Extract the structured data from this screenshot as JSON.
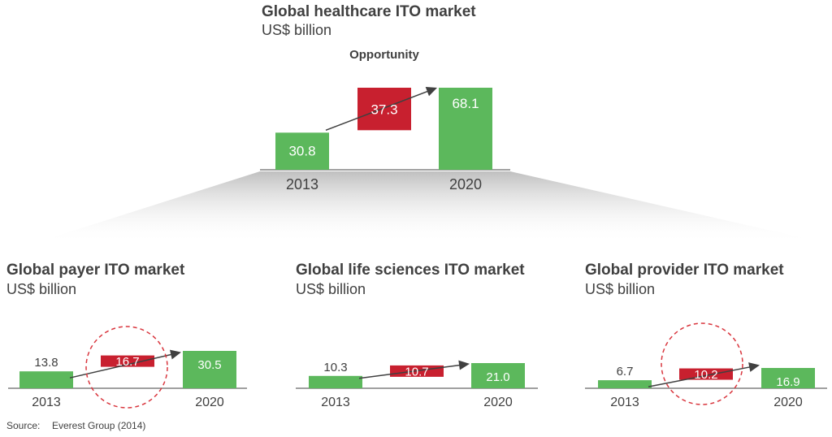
{
  "colors": {
    "growth": "#c8202f",
    "bar": "#5cb85c",
    "text": "#404040",
    "axis": "#808080",
    "circle": "#d9363e"
  },
  "chart_data": [
    {
      "type": "bar",
      "variant": "waterfall",
      "title": "Global healthcare ITO market",
      "subtitle": "US$ billion",
      "annotation": "Opportunity",
      "categories": [
        "2013",
        "2020"
      ],
      "values": [
        30.8,
        68.1
      ],
      "increment": 37.3,
      "highlight": false
    },
    {
      "type": "bar",
      "variant": "waterfall",
      "title": "Global payer ITO market",
      "subtitle": "US$ billion",
      "categories": [
        "2013",
        "2020"
      ],
      "values": [
        13.8,
        30.5
      ],
      "increment": 16.7,
      "highlight": true
    },
    {
      "type": "bar",
      "variant": "waterfall",
      "title": "Global life sciences ITO market",
      "subtitle": "US$ billion",
      "categories": [
        "2013",
        "2020"
      ],
      "values": [
        10.3,
        21.0
      ],
      "increment": 10.7,
      "highlight": false
    },
    {
      "type": "bar",
      "variant": "waterfall",
      "title": "Global provider ITO market",
      "subtitle": "US$ billion",
      "categories": [
        "2013",
        "2020"
      ],
      "values": [
        6.7,
        16.9
      ],
      "increment": 10.2,
      "highlight": true
    }
  ],
  "source": {
    "label": "Source:",
    "text": "Everest Group (2014)"
  }
}
